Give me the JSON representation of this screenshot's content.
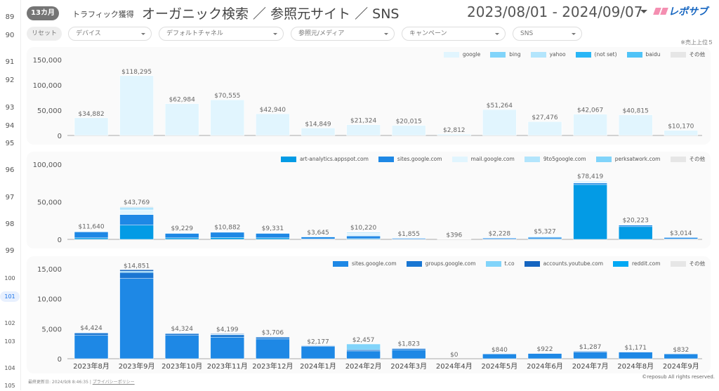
{
  "row_numbers": [
    "89",
    "90",
    "91",
    "92",
    "93",
    "94",
    "95",
    "96",
    "97",
    "98",
    "99",
    "100",
    "101",
    "102",
    "103",
    "104",
    "105"
  ],
  "header": {
    "badge": "13カ月",
    "subtitle": "トラフィック獲得",
    "title": "オーガニック検索 ／ 参照元サイト ／ SNS",
    "date_range": "2023/08/01 - 2024/09/07",
    "logo": "レポサブ"
  },
  "filters": {
    "reset": "リセット",
    "items": [
      "デバイス",
      "デフォルトチャネル",
      "参照元/メディア",
      "キャンペーン",
      "SNS"
    ]
  },
  "note": "※売上上位５",
  "footer": {
    "updated": "最終更新日: 2024/9/8 8:46:35",
    "privacy": "プライバシーポリシー",
    "copyright": "©reposub All rights reserved."
  },
  "chart_data": [
    {
      "type": "bar",
      "stacked": true,
      "categories": [
        "2023年8月",
        "2023年9月",
        "2023年10月",
        "2023年11月",
        "2023年12月",
        "2024年1月",
        "2024年2月",
        "2024年3月",
        "2024年4月",
        "2024年5月",
        "2024年6月",
        "2024年7月",
        "2024年8月",
        "2024年9月"
      ],
      "totals": [
        "$34,882",
        "$118,295",
        "$62,984",
        "$70,555",
        "$42,940",
        "$14,849",
        "$21,324",
        "$20,015",
        "$2,812",
        "$51,264",
        "$27,476",
        "$42,067",
        "$40,815",
        "$10,170"
      ],
      "ylim": [
        0,
        150000
      ],
      "yticks": [
        "0",
        "50,000",
        "100,000",
        "150,000"
      ],
      "legend": "top-right",
      "series": [
        {
          "name": "google",
          "color": "#e1f5fe",
          "values": [
            34882,
            118295,
            62984,
            70555,
            42940,
            14849,
            21324,
            20015,
            2812,
            51264,
            27476,
            42067,
            40815,
            10170
          ]
        },
        {
          "name": "bing",
          "color": "#81d4fa",
          "values": [
            0,
            0,
            0,
            0,
            0,
            0,
            0,
            0,
            0,
            0,
            0,
            0,
            0,
            0
          ]
        },
        {
          "name": "yahoo",
          "color": "#b3e5fc",
          "values": [
            0,
            0,
            0,
            0,
            0,
            0,
            0,
            0,
            0,
            0,
            0,
            0,
            0,
            0
          ]
        },
        {
          "name": "(not set)",
          "color": "#29b6f6",
          "values": [
            0,
            0,
            0,
            0,
            0,
            0,
            0,
            0,
            0,
            0,
            0,
            0,
            0,
            0
          ]
        },
        {
          "name": "baidu",
          "color": "#4fc3f7",
          "values": [
            0,
            0,
            0,
            0,
            0,
            0,
            0,
            0,
            0,
            0,
            0,
            0,
            0,
            0
          ]
        },
        {
          "name": "その他",
          "color": "#e6e6e6",
          "values": [
            0,
            0,
            0,
            0,
            0,
            0,
            0,
            0,
            0,
            0,
            0,
            0,
            0,
            0
          ]
        }
      ]
    },
    {
      "type": "bar",
      "stacked": true,
      "totals": [
        "$11,640",
        "$43,769",
        "$9,229",
        "$10,882",
        "$9,331",
        "$3,645",
        "$10,220",
        "$1,855",
        "$396",
        "$2,228",
        "$5,327",
        "$78,419",
        "$20,223",
        "$3,014"
      ],
      "ylim": [
        0,
        100000
      ],
      "yticks": [
        "0",
        "50,000",
        "100,000"
      ],
      "legend": "top-right",
      "series": [
        {
          "name": "art-analytics.appspot.com",
          "color": "#039be5",
          "values": [
            2000,
            19000,
            2000,
            2500,
            2000,
            500,
            1000,
            300,
            0,
            300,
            800,
            73000,
            17000,
            500
          ]
        },
        {
          "name": "sites.google.com",
          "color": "#1e88e5",
          "values": [
            8000,
            14000,
            6000,
            7000,
            6000,
            2800,
            3500,
            1200,
            300,
            1500,
            2000,
            2000,
            2000,
            2000
          ]
        },
        {
          "name": "mail.google.com",
          "color": "#e1f5fe",
          "values": [
            800,
            6000,
            600,
            700,
            700,
            200,
            3500,
            200,
            50,
            200,
            1500,
            2000,
            500,
            300
          ]
        },
        {
          "name": "9to5google.com",
          "color": "#b3e5fc",
          "values": [
            500,
            2000,
            400,
            400,
            400,
            100,
            1500,
            100,
            30,
            150,
            700,
            1000,
            400,
            150
          ]
        },
        {
          "name": "perksatwork.com",
          "color": "#81d4fa",
          "values": [
            200,
            1500,
            150,
            200,
            150,
            45,
            400,
            55,
            16,
            78,
            227,
            300,
            223,
            64
          ]
        },
        {
          "name": "その他",
          "color": "#e6e6e6",
          "values": [
            140,
            1269,
            79,
            82,
            81,
            0,
            320,
            0,
            0,
            0,
            100,
            119,
            100,
            0
          ]
        }
      ]
    },
    {
      "type": "bar",
      "stacked": true,
      "totals": [
        "$4,424",
        "$14,851",
        "$4,324",
        "$4,199",
        "$3,706",
        "$2,177",
        "$2,457",
        "$1,823",
        "$0",
        "$840",
        "$922",
        "$1,287",
        "$1,171",
        "$832"
      ],
      "ylim": [
        0,
        15000
      ],
      "yticks": [
        "0",
        "5,000",
        "10,000",
        "15,000"
      ],
      "legend": "top-right",
      "series": [
        {
          "name": "sites.google.com",
          "color": "#1e88e5",
          "values": [
            3900,
            13400,
            3900,
            3600,
            3300,
            2100,
            1300,
            1500,
            0,
            800,
            880,
            1100,
            1100,
            800
          ]
        },
        {
          "name": "groups.google.com",
          "color": "#1976d2",
          "values": [
            400,
            1000,
            300,
            400,
            300,
            77,
            200,
            200,
            0,
            40,
            42,
            150,
            71,
            32
          ]
        },
        {
          "name": "t.co",
          "color": "#81d4fa",
          "values": [
            74,
            200,
            74,
            99,
            56,
            0,
            957,
            73,
            0,
            0,
            0,
            37,
            0,
            0
          ]
        },
        {
          "name": "accounts.youtube.com",
          "color": "#1565c0",
          "values": [
            50,
            251,
            50,
            100,
            50,
            0,
            0,
            50,
            0,
            0,
            0,
            0,
            0,
            0
          ]
        },
        {
          "name": "reddit.com",
          "color": "#03a9f4",
          "values": [
            0,
            0,
            0,
            0,
            0,
            0,
            0,
            0,
            0,
            0,
            0,
            0,
            0,
            0
          ]
        },
        {
          "name": "その他",
          "color": "#e6e6e6",
          "values": [
            0,
            0,
            0,
            0,
            0,
            0,
            0,
            0,
            0,
            0,
            0,
            0,
            0,
            0
          ]
        }
      ]
    }
  ]
}
